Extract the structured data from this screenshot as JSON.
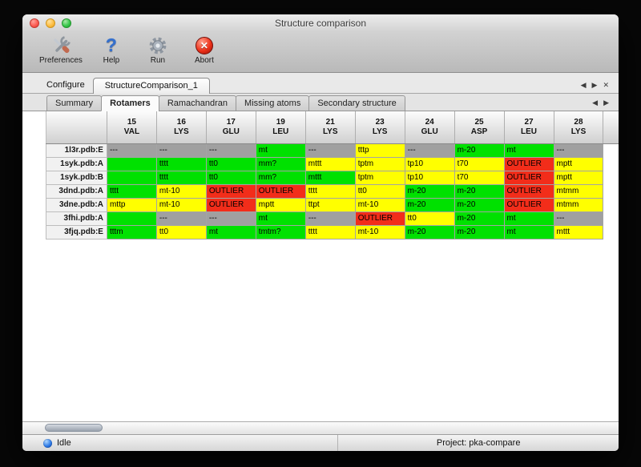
{
  "window": {
    "title": "Structure comparison"
  },
  "toolbar": {
    "buttons": [
      {
        "label": "Preferences"
      },
      {
        "label": "Help"
      },
      {
        "label": "Run"
      },
      {
        "label": "Abort"
      }
    ]
  },
  "configure": {
    "label": "Configure",
    "tab_label": "StructureComparison_1"
  },
  "result_tabs": [
    "Summary",
    "Rotamers",
    "Ramachandran",
    "Missing atoms",
    "Secondary structure"
  ],
  "active_tab": "Rotamers",
  "icons": {
    "help_glyph": "?",
    "abort_glyph": "✕",
    "prev_glyph": "◀",
    "next_glyph": "▶",
    "close_glyph": "✕"
  },
  "grid": {
    "columns": [
      {
        "num": "15",
        "res": "VAL"
      },
      {
        "num": "16",
        "res": "LYS"
      },
      {
        "num": "17",
        "res": "GLU"
      },
      {
        "num": "19",
        "res": "LEU"
      },
      {
        "num": "21",
        "res": "LYS"
      },
      {
        "num": "23",
        "res": "LYS"
      },
      {
        "num": "24",
        "res": "GLU"
      },
      {
        "num": "25",
        "res": "ASP"
      },
      {
        "num": "27",
        "res": "LEU"
      },
      {
        "num": "28",
        "res": "LYS"
      }
    ],
    "rows": [
      {
        "label": "1l3r.pdb:E",
        "cells": [
          {
            "text": "---",
            "status": "missing"
          },
          {
            "text": "---",
            "status": "missing"
          },
          {
            "text": "---",
            "status": "missing"
          },
          {
            "text": "mt",
            "status": "favored"
          },
          {
            "text": "---",
            "status": "missing"
          },
          {
            "text": "tttp",
            "status": "allowed"
          },
          {
            "text": "---",
            "status": "missing"
          },
          {
            "text": "m-20",
            "status": "favored"
          },
          {
            "text": "mt",
            "status": "favored"
          },
          {
            "text": "---",
            "status": "missing"
          }
        ]
      },
      {
        "label": "1syk.pdb:A",
        "cells": [
          {
            "text": "",
            "status": "favored"
          },
          {
            "text": "tttt",
            "status": "favored"
          },
          {
            "text": "tt0",
            "status": "favored"
          },
          {
            "text": "mm?",
            "status": "favored"
          },
          {
            "text": "mttt",
            "status": "allowed"
          },
          {
            "text": "tptm",
            "status": "allowed"
          },
          {
            "text": "tp10",
            "status": "allowed"
          },
          {
            "text": "t70",
            "status": "allowed"
          },
          {
            "text": "OUTLIER",
            "status": "outlier"
          },
          {
            "text": "mptt",
            "status": "allowed"
          }
        ]
      },
      {
        "label": "1syk.pdb:B",
        "cells": [
          {
            "text": "",
            "status": "favored"
          },
          {
            "text": "tttt",
            "status": "favored"
          },
          {
            "text": "tt0",
            "status": "favored"
          },
          {
            "text": "mm?",
            "status": "favored"
          },
          {
            "text": "mttt",
            "status": "favored"
          },
          {
            "text": "tptm",
            "status": "allowed"
          },
          {
            "text": "tp10",
            "status": "allowed"
          },
          {
            "text": "t70",
            "status": "allowed"
          },
          {
            "text": "OUTLIER",
            "status": "outlier"
          },
          {
            "text": "mptt",
            "status": "allowed"
          }
        ]
      },
      {
        "label": "3dnd.pdb:A",
        "cells": [
          {
            "text": "tttt",
            "status": "favored"
          },
          {
            "text": "mt-10",
            "status": "allowed"
          },
          {
            "text": "OUTLIER",
            "status": "outlier"
          },
          {
            "text": "OUTLIER",
            "status": "outlier"
          },
          {
            "text": "tttt",
            "status": "allowed"
          },
          {
            "text": "tt0",
            "status": "allowed"
          },
          {
            "text": "m-20",
            "status": "favored"
          },
          {
            "text": "m-20",
            "status": "favored"
          },
          {
            "text": "OUTLIER",
            "status": "outlier"
          },
          {
            "text": "mtmm",
            "status": "allowed"
          }
        ]
      },
      {
        "label": "3dne.pdb:A",
        "cells": [
          {
            "text": "mttp",
            "status": "allowed"
          },
          {
            "text": "mt-10",
            "status": "allowed"
          },
          {
            "text": "OUTLIER",
            "status": "outlier"
          },
          {
            "text": "mptt",
            "status": "allowed"
          },
          {
            "text": "ttpt",
            "status": "allowed"
          },
          {
            "text": "mt-10",
            "status": "allowed"
          },
          {
            "text": "m-20",
            "status": "favored"
          },
          {
            "text": "m-20",
            "status": "favored"
          },
          {
            "text": "OUTLIER",
            "status": "outlier"
          },
          {
            "text": "mtmm",
            "status": "allowed"
          }
        ]
      },
      {
        "label": "3fhi.pdb:A",
        "cells": [
          {
            "text": "",
            "status": "favored"
          },
          {
            "text": "---",
            "status": "missing"
          },
          {
            "text": "---",
            "status": "missing"
          },
          {
            "text": "mt",
            "status": "favored"
          },
          {
            "text": "---",
            "status": "missing"
          },
          {
            "text": "OUTLIER",
            "status": "outlier"
          },
          {
            "text": "tt0",
            "status": "allowed"
          },
          {
            "text": "m-20",
            "status": "favored"
          },
          {
            "text": "mt",
            "status": "favored"
          },
          {
            "text": "---",
            "status": "missing"
          }
        ]
      },
      {
        "label": "3fjq.pdb:E",
        "cells": [
          {
            "text": "tttm",
            "status": "favored"
          },
          {
            "text": "tt0",
            "status": "allowed"
          },
          {
            "text": "mt",
            "status": "favored"
          },
          {
            "text": "tmtm?",
            "status": "favored"
          },
          {
            "text": "tttt",
            "status": "allowed"
          },
          {
            "text": "mt-10",
            "status": "allowed"
          },
          {
            "text": "m-20",
            "status": "favored"
          },
          {
            "text": "m-20",
            "status": "favored"
          },
          {
            "text": "mt",
            "status": "favored"
          },
          {
            "text": "mttt",
            "status": "allowed"
          }
        ]
      }
    ]
  },
  "statusbar": {
    "state": "Idle",
    "project": "Project: pka-compare"
  }
}
